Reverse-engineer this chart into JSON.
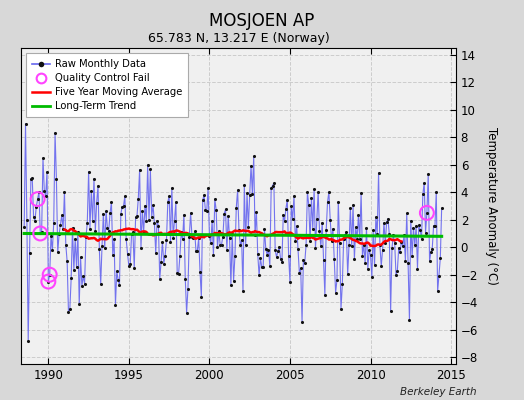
{
  "title": "MOSJOEN AP",
  "subtitle": "65.783 N, 13.217 E (Norway)",
  "ylabel": "Temperature Anomaly (°C)",
  "watermark": "Berkeley Earth",
  "xlim": [
    1988.3,
    2015.3
  ],
  "ylim": [
    -8.5,
    14.5
  ],
  "yticks": [
    -8,
    -6,
    -4,
    -2,
    0,
    2,
    4,
    6,
    8,
    10,
    12,
    14
  ],
  "xticks": [
    1990,
    1995,
    2000,
    2005,
    2010,
    2015
  ],
  "fig_color": "#d8d8d8",
  "plot_bg_color": "#f0f0f0",
  "line_color": "#6666ee",
  "dot_color": "#111111",
  "ma_color": "#ff0000",
  "trend_color": "#00bb00",
  "qc_color": "#ff44ff",
  "trend_value": 1.0,
  "trend_slope": -0.008,
  "seed": 12345,
  "n_months": 312,
  "start_year": 1988.5
}
